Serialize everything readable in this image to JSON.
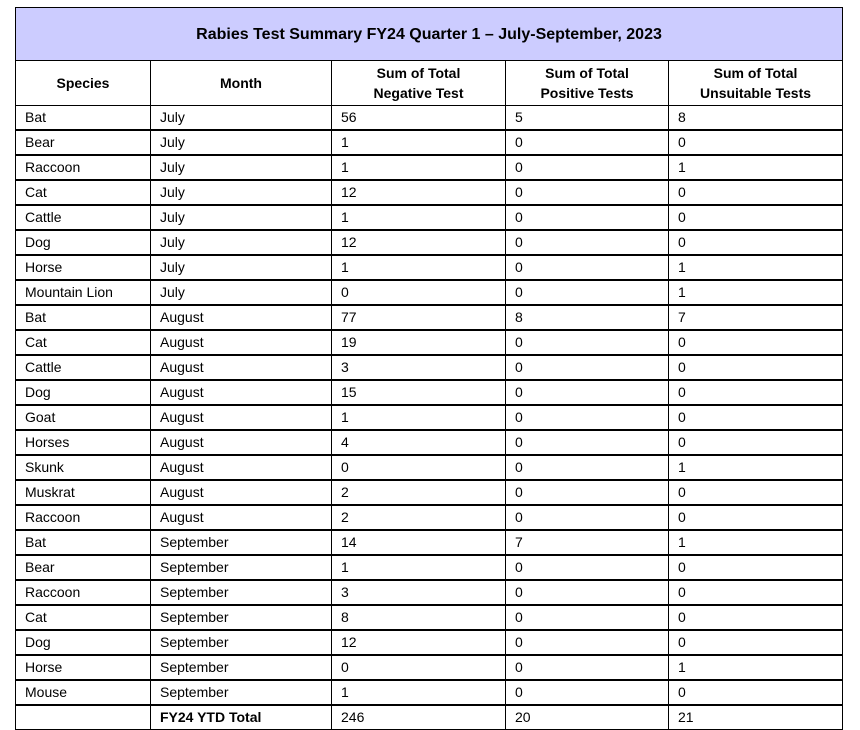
{
  "title": "Rabies Test Summary FY24 Quarter 1 – July-September, 2023",
  "colors": {
    "title_background": "#ccccff"
  },
  "columns": [
    "Species",
    "Month",
    "Sum of Total Negative Test",
    "Sum of Total Positive Tests",
    "Sum of Total Unsuitable Tests"
  ],
  "rows": [
    [
      "Bat",
      "July",
      "56",
      "5",
      "8"
    ],
    [
      "Bear",
      "July",
      "1",
      "0",
      "0"
    ],
    [
      "Raccoon",
      "July",
      "1",
      "0",
      "1"
    ],
    [
      "Cat",
      "July",
      "12",
      "0",
      "0"
    ],
    [
      "Cattle",
      "July",
      "1",
      "0",
      "0"
    ],
    [
      "Dog",
      "July",
      "12",
      "0",
      "0"
    ],
    [
      "Horse",
      "July",
      "1",
      "0",
      "1"
    ],
    [
      "Mountain Lion",
      "July",
      "0",
      "0",
      "1"
    ],
    [
      "Bat",
      "August",
      "77",
      "8",
      "7"
    ],
    [
      "Cat",
      "August",
      "19",
      "0",
      "0"
    ],
    [
      "Cattle",
      "August",
      "3",
      "0",
      "0"
    ],
    [
      "Dog",
      "August",
      "15",
      "0",
      "0"
    ],
    [
      "Goat",
      "August",
      "1",
      "0",
      "0"
    ],
    [
      "Horses",
      "August",
      "4",
      "0",
      "0"
    ],
    [
      "Skunk",
      "August",
      "0",
      "0",
      "1"
    ],
    [
      "Muskrat",
      "August",
      "2",
      "0",
      "0"
    ],
    [
      "Raccoon",
      "August",
      "2",
      "0",
      "0"
    ],
    [
      "Bat",
      "September",
      "14",
      "7",
      "1"
    ],
    [
      "Bear",
      "September",
      "1",
      "0",
      "0"
    ],
    [
      "Raccoon",
      "September",
      "3",
      "0",
      "0"
    ],
    [
      "Cat",
      "September",
      "8",
      "0",
      "0"
    ],
    [
      "Dog",
      "September",
      "12",
      "0",
      "0"
    ],
    [
      "Horse",
      "September",
      "0",
      "0",
      "1"
    ],
    [
      "Mouse",
      "September",
      "1",
      "0",
      "0"
    ]
  ],
  "total": [
    "",
    "FY24 YTD Total",
    "246",
    "20",
    "21"
  ]
}
